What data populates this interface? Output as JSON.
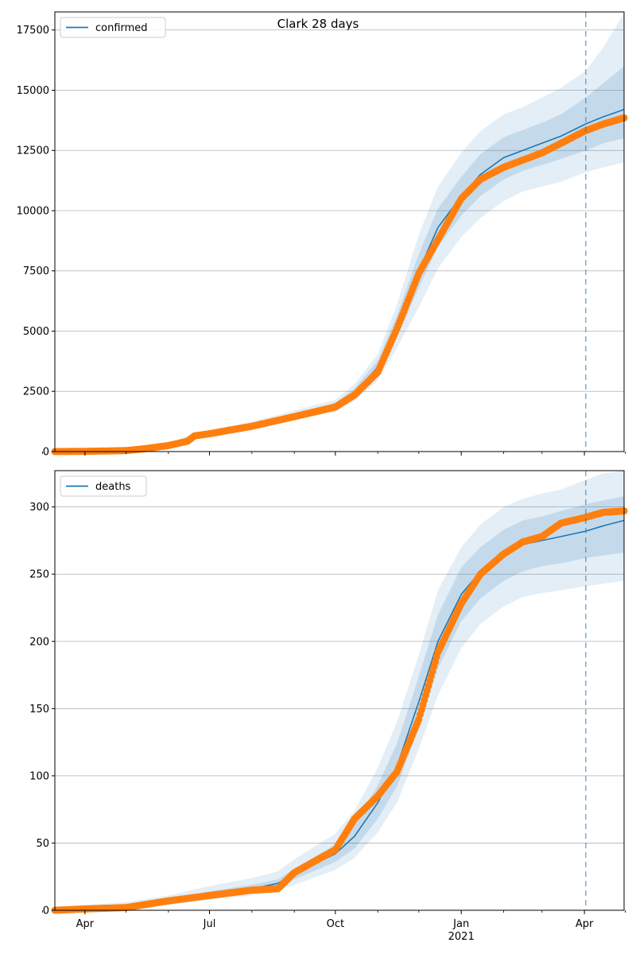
{
  "figure": {
    "title": "Clark 28 days"
  },
  "colors": {
    "model_line": "#1f77b4",
    "observed": "#ff7f0e",
    "band": "#1f77b4",
    "grid": "#b0b0b0",
    "forecast_marker": "#1f77b4"
  },
  "x_axis": {
    "ticks": [
      {
        "date": "2020-04-01",
        "label": "Apr",
        "sublabel": ""
      },
      {
        "date": "2020-07-01",
        "label": "Jul",
        "sublabel": ""
      },
      {
        "date": "2020-10-01",
        "label": "Oct",
        "sublabel": ""
      },
      {
        "date": "2021-01-01",
        "label": "Jan",
        "sublabel": "2021"
      },
      {
        "date": "2021-04-01",
        "label": "Apr",
        "sublabel": ""
      }
    ],
    "minor_tick_dates": [
      "2020-03-01",
      "2020-05-01",
      "2020-06-01",
      "2020-08-01",
      "2020-09-01",
      "2020-11-01",
      "2020-12-01",
      "2021-02-01",
      "2021-03-01",
      "2021-05-01"
    ],
    "range": [
      "2020-03-10",
      "2021-04-30"
    ]
  },
  "chart_data": [
    {
      "type": "line",
      "legend": {
        "entries": [
          "confirmed"
        ],
        "position": "top-left"
      },
      "grid": true,
      "ylim": [
        0,
        18250
      ],
      "yticks": [
        0,
        2500,
        5000,
        7500,
        10000,
        12500,
        15000,
        17500
      ],
      "forecast_start": "2021-04-02",
      "model": {
        "x": [
          "2020-03-10",
          "2020-04-01",
          "2020-05-01",
          "2020-06-01",
          "2020-06-15",
          "2020-07-01",
          "2020-08-01",
          "2020-09-01",
          "2020-10-01",
          "2020-10-15",
          "2020-11-01",
          "2020-11-15",
          "2020-12-01",
          "2020-12-15",
          "2021-01-01",
          "2021-01-15",
          "2021-02-01",
          "2021-02-15",
          "2021-03-01",
          "2021-03-15",
          "2021-04-02",
          "2021-04-15",
          "2021-04-30"
        ],
        "y": [
          0,
          10,
          50,
          250,
          550,
          780,
          1100,
          1500,
          1900,
          2450,
          3500,
          5200,
          7500,
          9300,
          10600,
          11500,
          12200,
          12500,
          12800,
          13100,
          13600,
          13900,
          14200
        ],
        "inner_lo": [
          0,
          8,
          40,
          220,
          500,
          730,
          1030,
          1400,
          1780,
          2280,
          3220,
          4750,
          6800,
          8500,
          9800,
          10600,
          11300,
          11650,
          11900,
          12150,
          12500,
          12800,
          13000
        ],
        "inner_hi": [
          0,
          12,
          60,
          280,
          600,
          830,
          1170,
          1600,
          2020,
          2620,
          3780,
          5650,
          8200,
          10100,
          11400,
          12350,
          13050,
          13350,
          13650,
          14000,
          14700,
          15300,
          16000
        ],
        "outer_lo": [
          0,
          5,
          30,
          180,
          450,
          680,
          960,
          1300,
          1650,
          2100,
          2950,
          4300,
          6000,
          7600,
          8900,
          9700,
          10400,
          10800,
          11000,
          11200,
          11600,
          11800,
          12000
        ],
        "outer_hi": [
          0,
          15,
          70,
          320,
          650,
          880,
          1240,
          1700,
          2150,
          2800,
          4050,
          6100,
          9000,
          11000,
          12400,
          13300,
          14000,
          14300,
          14700,
          15100,
          15800,
          16800,
          18200
        ]
      },
      "observed": {
        "x": [
          "2020-03-10",
          "2020-04-01",
          "2020-05-01",
          "2020-05-15",
          "2020-06-01",
          "2020-06-15",
          "2020-06-20",
          "2020-07-01",
          "2020-08-01",
          "2020-09-01",
          "2020-10-01",
          "2020-10-15",
          "2020-11-01",
          "2020-11-15",
          "2020-12-01",
          "2020-12-15",
          "2021-01-01",
          "2021-01-15",
          "2021-02-01",
          "2021-02-15",
          "2021-03-01",
          "2021-03-15",
          "2021-04-01",
          "2021-04-15",
          "2021-04-30"
        ],
        "y": [
          0,
          10,
          40,
          120,
          250,
          430,
          650,
          740,
          1050,
          1450,
          1850,
          2350,
          3300,
          5100,
          7400,
          8800,
          10500,
          11300,
          11800,
          12100,
          12400,
          12800,
          13300,
          13600,
          13850
        ]
      }
    },
    {
      "type": "line",
      "legend": {
        "entries": [
          "deaths"
        ],
        "position": "top-left"
      },
      "grid": true,
      "ylim": [
        0,
        327
      ],
      "yticks": [
        0,
        50,
        100,
        150,
        200,
        250,
        300
      ],
      "forecast_start": "2021-04-02",
      "model": {
        "x": [
          "2020-03-10",
          "2020-04-01",
          "2020-05-01",
          "2020-06-01",
          "2020-07-01",
          "2020-08-01",
          "2020-08-20",
          "2020-09-01",
          "2020-10-01",
          "2020-10-15",
          "2020-11-01",
          "2020-11-15",
          "2020-12-01",
          "2020-12-15",
          "2021-01-01",
          "2021-01-15",
          "2021-02-01",
          "2021-02-15",
          "2021-03-01",
          "2021-03-15",
          "2021-04-02",
          "2021-04-15",
          "2021-04-30"
        ],
        "y": [
          0,
          1,
          2,
          6,
          12,
          16,
          20,
          27,
          42,
          55,
          80,
          107,
          155,
          200,
          235,
          252,
          265,
          272,
          275,
          278,
          282,
          286,
          290
        ],
        "inner_lo": [
          0,
          1,
          2,
          5,
          10,
          14,
          17,
          23,
          36,
          46,
          68,
          92,
          136,
          180,
          215,
          232,
          245,
          252,
          256,
          258,
          262,
          264,
          266
        ],
        "inner_hi": [
          1,
          2,
          4,
          8,
          14,
          19,
          23,
          31,
          49,
          64,
          93,
          124,
          174,
          220,
          255,
          270,
          283,
          290,
          293,
          297,
          302,
          305,
          308
        ],
        "outer_lo": [
          0,
          0,
          1,
          4,
          8,
          11,
          14,
          19,
          30,
          39,
          58,
          80,
          120,
          160,
          195,
          213,
          226,
          233,
          236,
          238,
          241,
          243,
          245
        ],
        "outer_hi": [
          2,
          4,
          6,
          11,
          18,
          24,
          29,
          38,
          57,
          74,
          106,
          140,
          190,
          238,
          270,
          287,
          300,
          306,
          310,
          313,
          320,
          325,
          327
        ]
      },
      "observed": {
        "x": [
          "2020-03-10",
          "2020-04-01",
          "2020-05-01",
          "2020-06-01",
          "2020-07-01",
          "2020-08-01",
          "2020-08-20",
          "2020-09-01",
          "2020-10-01",
          "2020-10-15",
          "2020-11-01",
          "2020-11-15",
          "2020-12-01",
          "2020-12-15",
          "2021-01-01",
          "2021-01-15",
          "2021-02-01",
          "2021-02-15",
          "2021-03-01",
          "2021-03-15",
          "2021-04-01",
          "2021-04-15",
          "2021-04-30"
        ],
        "y": [
          0,
          1,
          2,
          7,
          11,
          15,
          16,
          28,
          45,
          68,
          85,
          103,
          142,
          192,
          228,
          250,
          265,
          274,
          278,
          288,
          292,
          296,
          297
        ]
      }
    }
  ]
}
